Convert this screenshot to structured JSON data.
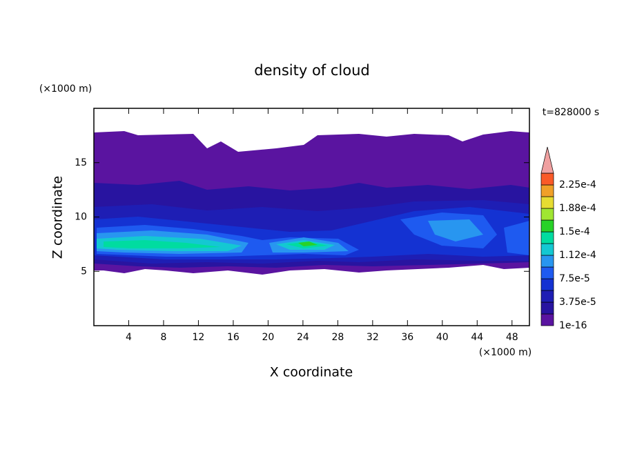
{
  "chart_data": {
    "type": "contour",
    "title": "density of cloud",
    "x_label": "X coordinate",
    "y_label": "Z coordinate",
    "x_unit": "(×1000 m)",
    "y_unit": "(×1000 m)",
    "time_label": "t=828000 s",
    "xlim": [
      0,
      50
    ],
    "xticks": [
      4,
      8,
      12,
      16,
      20,
      24,
      28,
      32,
      36,
      40,
      44,
      48
    ],
    "ylim": [
      0,
      20
    ],
    "yticks": [
      5,
      10,
      15
    ],
    "colorbar": {
      "ticks": [
        {
          "value": 1e-16,
          "label": "1e-16"
        },
        {
          "value": 3.75e-05,
          "label": "3.75e-5"
        },
        {
          "value": 7.5e-05,
          "label": "7.5e-5"
        },
        {
          "value": 0.000112,
          "label": "1.12e-4"
        },
        {
          "value": 0.00015,
          "label": "1.5e-4"
        },
        {
          "value": 0.000188,
          "label": "1.88e-4"
        },
        {
          "value": 0.000225,
          "label": "2.25e-4"
        }
      ],
      "colors": [
        "#5a14a0",
        "#2814a0",
        "#1e1eb4",
        "#1432d2",
        "#1e5af0",
        "#2896f0",
        "#14c8d2",
        "#00dca0",
        "#28d228",
        "#a0e632",
        "#e6dc32",
        "#f0a028",
        "#fa5a28",
        "#f03c3c"
      ],
      "extend_color": "#f0a0a0"
    }
  }
}
